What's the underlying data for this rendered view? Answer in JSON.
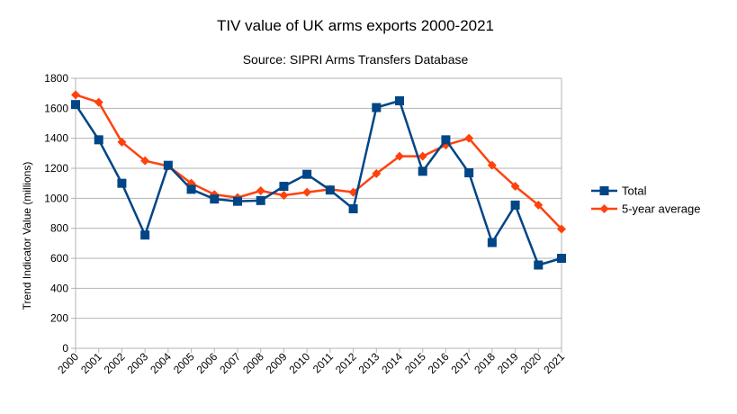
{
  "chart_data": {
    "type": "line",
    "title": "TIV value of UK arms exports 2000-2021",
    "subtitle": "Source: SIPRI Arms Transfers Database",
    "ylabel": "Trend Indicator Value (millions)",
    "xlabel": "",
    "ylim": [
      0,
      1800
    ],
    "ytick_step": 200,
    "grid": true,
    "legend_position": "right",
    "x": [
      "2000",
      "2001",
      "2002",
      "2003",
      "2004",
      "2005",
      "2006",
      "2007",
      "2008",
      "2009",
      "2010",
      "2011",
      "2012",
      "2013",
      "2014",
      "2015",
      "2016",
      "2017",
      "2018",
      "2019",
      "2020",
      "2021"
    ],
    "series": [
      {
        "name": "Total",
        "color": "#004586",
        "marker": "square",
        "values": [
          1625,
          1390,
          1100,
          755,
          1220,
          1060,
          995,
          980,
          985,
          1080,
          1160,
          1055,
          930,
          1605,
          1650,
          1180,
          1390,
          1170,
          705,
          955,
          555,
          600
        ]
      },
      {
        "name": "5-year average",
        "color": "#ff420e",
        "marker": "diamond",
        "values": [
          1690,
          1640,
          1375,
          1250,
          1215,
          1100,
          1025,
          1005,
          1050,
          1020,
          1040,
          1060,
          1040,
          1165,
          1280,
          1280,
          1355,
          1400,
          1220,
          1080,
          955,
          795
        ]
      }
    ]
  }
}
